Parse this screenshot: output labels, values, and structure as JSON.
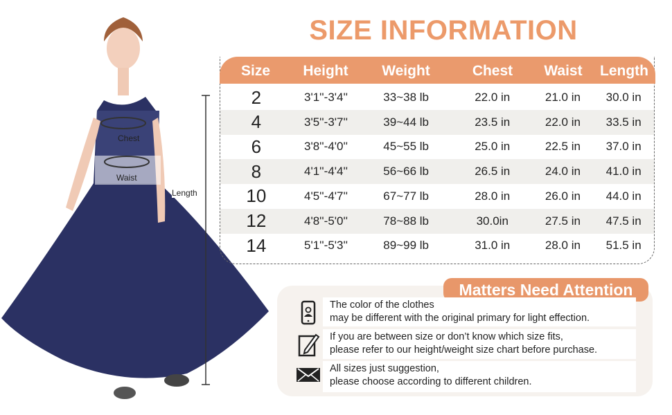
{
  "title": "SIZE INFORMATION",
  "figure": {
    "chest_label": "Chest",
    "waist_label": "Waist",
    "length_label": "Length",
    "dress_color": "#2b3163"
  },
  "table": {
    "headers": [
      "Size",
      "Height",
      "Weight",
      "Chest",
      "Waist",
      "Length"
    ],
    "rows": [
      [
        "2",
        "3'1''-3'4''",
        "33~38 lb",
        "22.0 in",
        "21.0 in",
        "30.0 in"
      ],
      [
        "4",
        "3'5''-3'7''",
        "39~44 lb",
        "23.5 in",
        "22.0 in",
        "33.5 in"
      ],
      [
        "6",
        "3'8''-4'0''",
        "45~55 lb",
        "25.0 in",
        "22.5 in",
        "37.0 in"
      ],
      [
        "8",
        "4'1''-4'4''",
        "56~66 lb",
        "26.5 in",
        "24.0 in",
        "41.0 in"
      ],
      [
        "10",
        "4'5''-4'7''",
        "67~77 lb",
        "28.0 in",
        "26.0 in",
        "44.0 in"
      ],
      [
        "12",
        "4'8''-5'0''",
        "78~88 lb",
        "30.0in",
        "27.5 in",
        "47.5 in"
      ],
      [
        "14",
        "5'1''-5'3''",
        "89~99 lb",
        "31.0 in",
        "28.0 in",
        "51.5 in"
      ]
    ]
  },
  "attention": {
    "title": "Matters Need Attention",
    "items": [
      {
        "icon": "phone-icon",
        "line1": "The color of the clothes",
        "line2": "may be different with the original primary for light effection."
      },
      {
        "icon": "ruler-icon",
        "line1": "If you are between size or don’t know which size fits,",
        "line2": "please refer to our height/weight size chart before purchase."
      },
      {
        "icon": "envelope-icon",
        "line1": "All sizes just suggestion,",
        "line2": "please choose according to different children."
      }
    ]
  },
  "colors": {
    "accent": "#ea9a6d",
    "row_alt": "#f0efec"
  }
}
